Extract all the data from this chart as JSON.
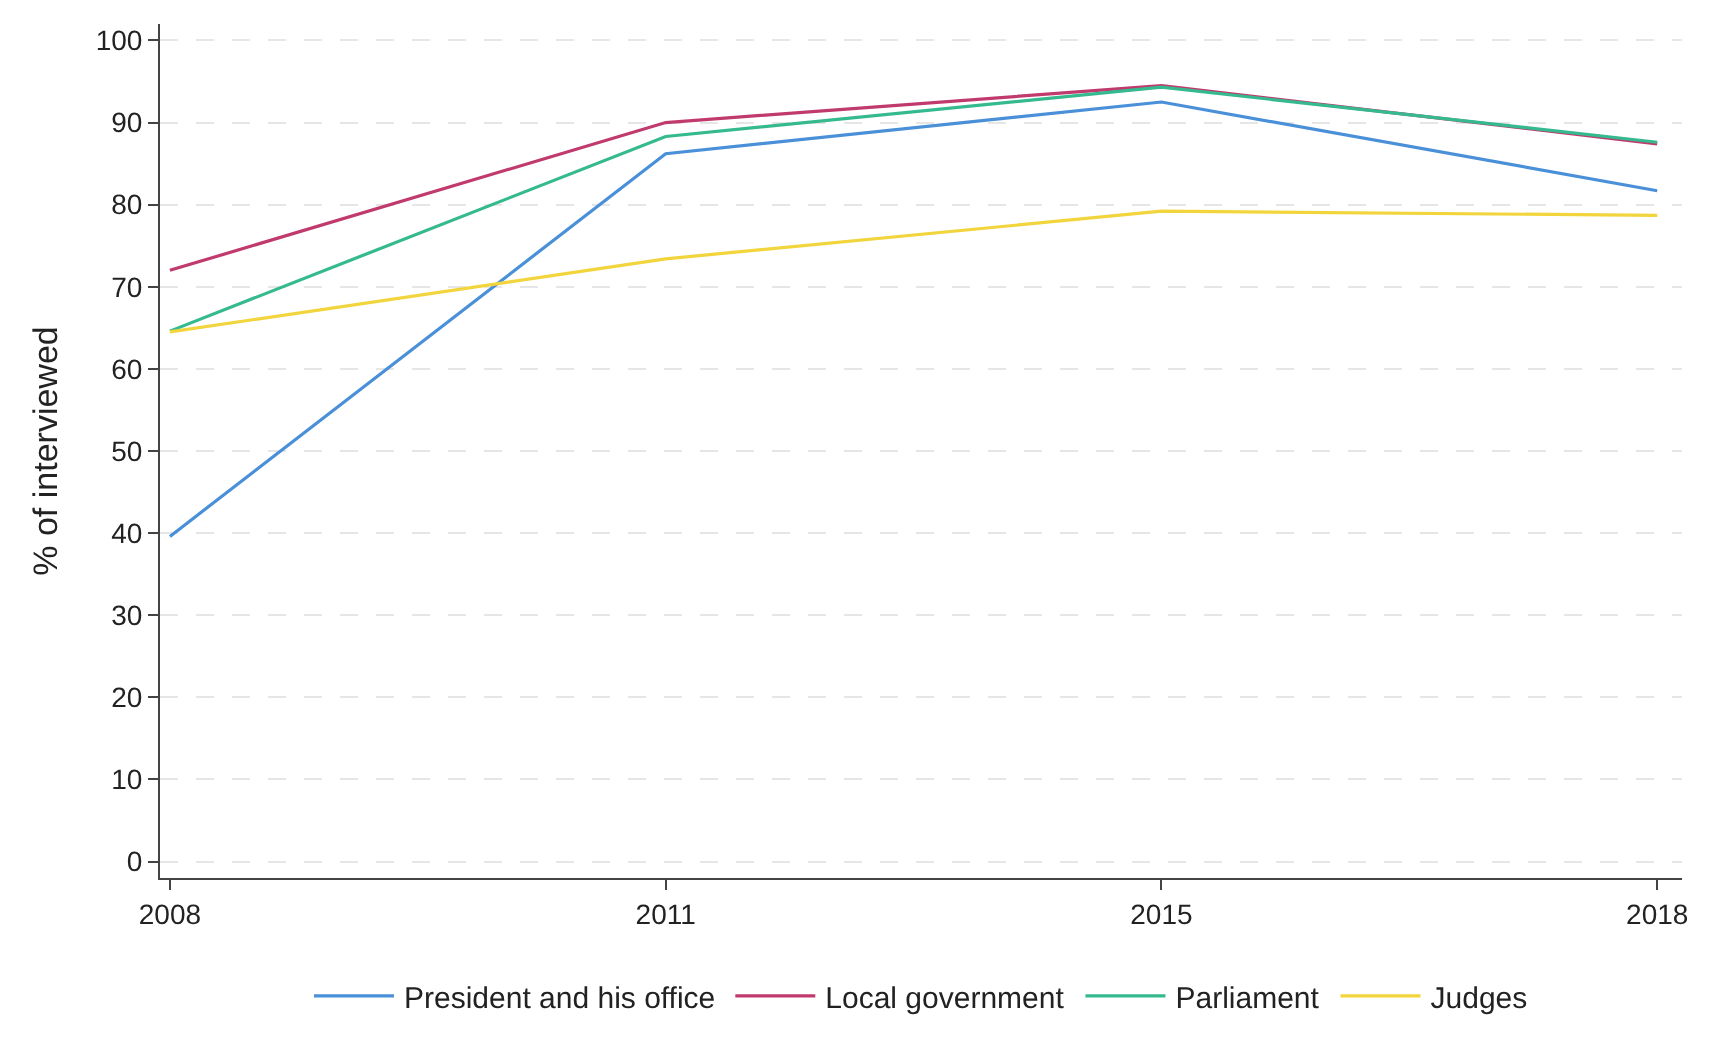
{
  "chart_data": {
    "type": "line",
    "ylabel": "% of interviewed",
    "categories": [
      "2008",
      "2011",
      "2015",
      "2018"
    ],
    "series": [
      {
        "name": "President and his office",
        "color": "#4a90d9",
        "values": [
          39.6,
          86.2,
          92.5,
          81.7
        ]
      },
      {
        "name": "Local government",
        "color": "#c03a6e",
        "values": [
          72.0,
          90.0,
          94.5,
          87.4
        ]
      },
      {
        "name": "Parliament",
        "color": "#35b98f",
        "values": [
          64.6,
          88.3,
          94.3,
          87.6
        ]
      },
      {
        "name": "Judges",
        "color": "#f2d43c",
        "values": [
          64.5,
          73.4,
          79.2,
          78.7
        ]
      }
    ],
    "ylim": [
      -2,
      102
    ],
    "yticks": [
      0,
      10,
      20,
      30,
      40,
      50,
      60,
      70,
      80,
      90,
      100
    ],
    "grid": "y",
    "legend": "bottom",
    "marker": "none",
    "line_style": "solid"
  }
}
